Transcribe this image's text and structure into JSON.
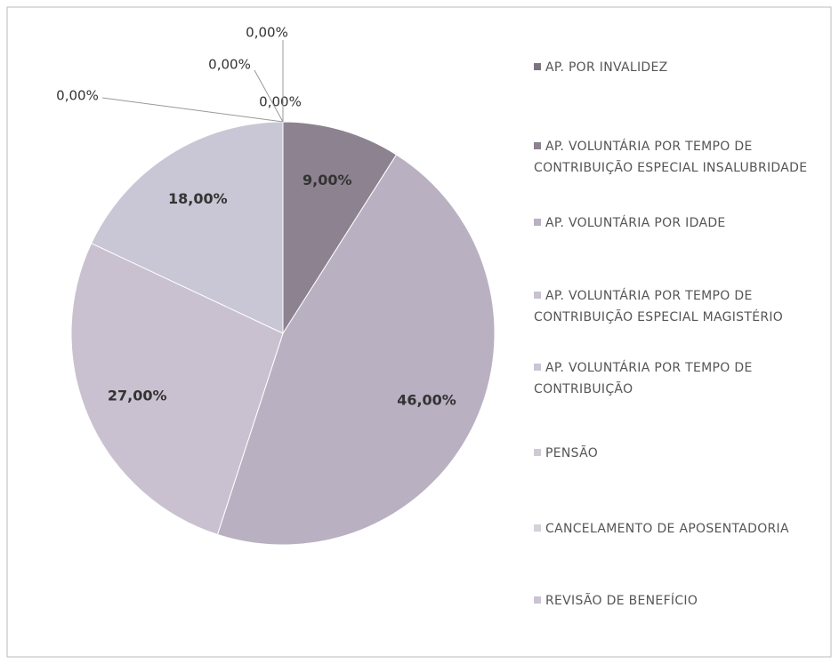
{
  "chart_data": {
    "type": "pie",
    "categories": [
      "AP. POR INVALIDEZ",
      "AP. VOLUNTÁRIA POR TEMPO DE CONTRIBUIÇÃO ESPECIAL INSALUBRIDADE",
      "AP. VOLUNTÁRIA POR IDADE",
      "AP. VOLUNTÁRIA POR TEMPO DE CONTRIBUIÇÃO ESPECIAL MAGISTÉRIO",
      "AP. VOLUNTÁRIA POR TEMPO DE CONTRIBUIÇÃO",
      "PENSÃO",
      "CANCELAMENTO DE APOSENTADORIA",
      "REVISÃO DE BENEFÍCIO"
    ],
    "values": [
      0,
      9,
      46,
      27,
      18,
      0,
      0,
      0
    ],
    "value_labels": [
      "0,00%",
      "9,00%",
      "46,00%",
      "27,00%",
      "18,00%",
      "0,00%",
      "0,00%",
      "0,00%"
    ],
    "colors": [
      "#7d7480",
      "#8d8290",
      "#b9b0c2",
      "#cac1d0",
      "#c9c6d5",
      "#cfc9d6",
      "#d4d1d8",
      "#cbc3d4"
    ],
    "legend": "right"
  }
}
